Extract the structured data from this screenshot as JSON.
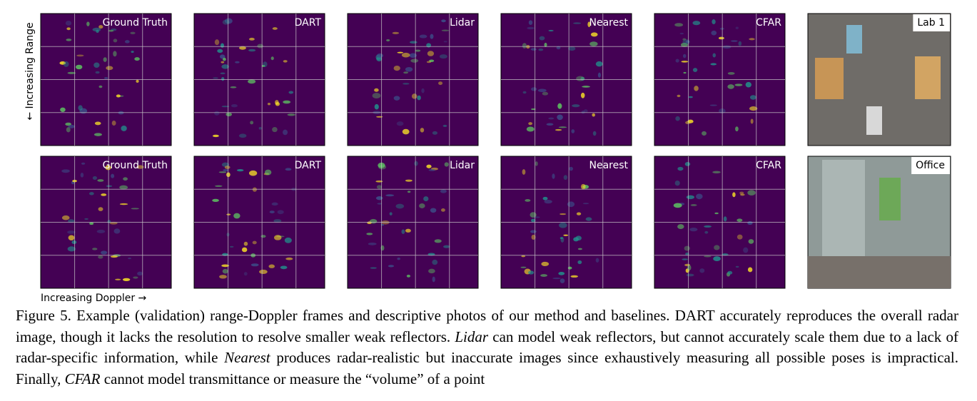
{
  "figure": {
    "rows": [
      {
        "panels": [
          "Ground Truth",
          "DART",
          "Lidar",
          "Nearest",
          "CFAR"
        ],
        "photo": "Lab 1"
      },
      {
        "panels": [
          "Ground Truth",
          "DART",
          "Lidar",
          "Nearest",
          "CFAR"
        ],
        "photo": "Office"
      }
    ],
    "y_label": "← Increasing Range",
    "x_label": "Increasing Doppler →",
    "caption": [
      "Figure 5. Example (validation) range-Doppler frames and descriptive photos of our method and baselines. DART accurately reproduces the overall radar image, though it lacks the resolution to resolve smaller weak reflectors. ",
      "Lidar",
      " can model weak reflectors, but cannot accurately scale them due to a lack of radar-specific information, while ",
      "Nearest",
      " produces radar-realistic but inaccurate images since exhaustively measuring all possible poses is impractical. Finally, ",
      "CFAR",
      " cannot model transmittance or measure the “volume” of a point"
    ]
  }
}
